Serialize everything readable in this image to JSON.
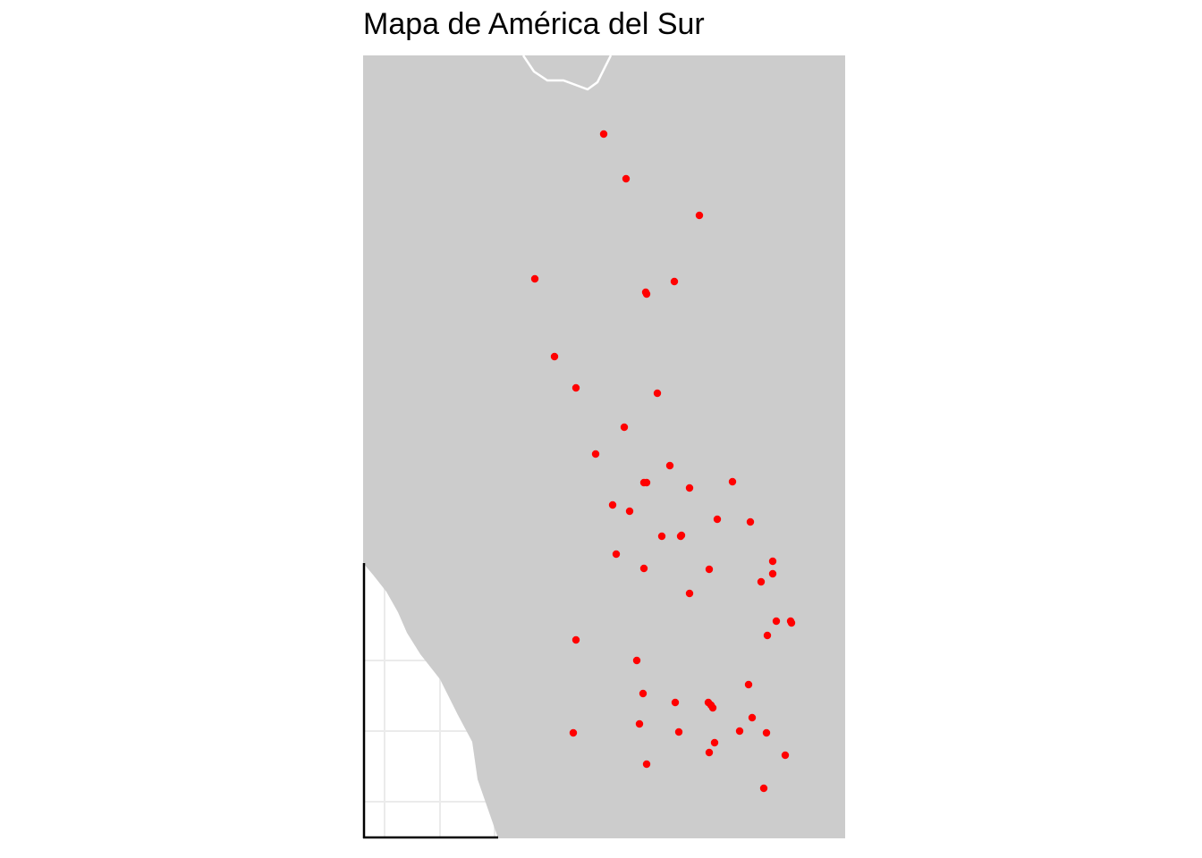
{
  "title": "Mapa de América del Sur",
  "colors": {
    "land": "#cccccc",
    "ocean": "#ffffff",
    "border": "#ffffff",
    "points": "#ff0000",
    "grid": "#ebebeb",
    "axis": "#000000"
  },
  "map": {
    "layers": [
      "land-polygon",
      "country-border",
      "city-points"
    ],
    "point_count": 57
  }
}
